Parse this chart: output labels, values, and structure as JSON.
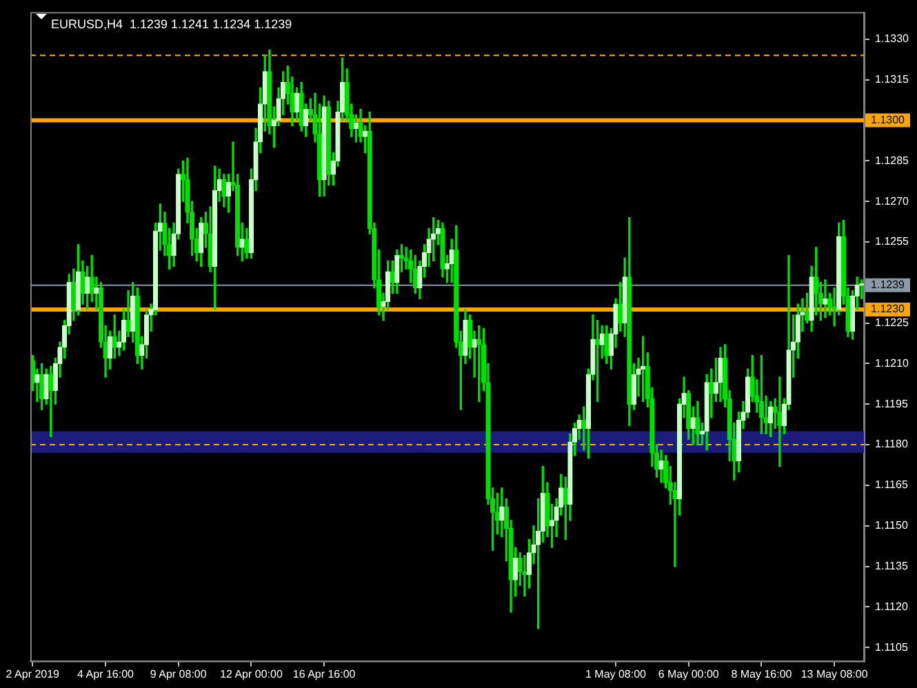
{
  "chart_data": {
    "type": "candlestick",
    "title": "EURUSD,H4  1.1239 1.1241 1.1234 1.1239",
    "color": "#00e000",
    "categories": [
      "2 Apr 2019",
      null,
      null,
      null,
      null,
      null,
      null,
      null,
      null,
      null,
      null,
      null,
      null,
      null,
      null,
      null,
      "4 Apr 16:00",
      null,
      null,
      null,
      null,
      null,
      null,
      null,
      null,
      null,
      null,
      null,
      null,
      null,
      null,
      null,
      "9 Apr 08:00",
      null,
      null,
      null,
      null,
      null,
      null,
      null,
      null,
      null,
      null,
      null,
      null,
      null,
      null,
      null,
      "12 Apr 00:00",
      null,
      null,
      null,
      null,
      null,
      null,
      null,
      null,
      null,
      null,
      null,
      null,
      null,
      null,
      null,
      "16 Apr 16:00",
      null,
      null,
      null,
      null,
      null,
      null,
      null,
      null,
      null,
      null,
      null,
      null,
      null,
      null,
      null,
      null,
      null,
      null,
      null,
      null,
      null,
      null,
      null,
      null,
      null,
      null,
      null,
      null,
      null,
      null,
      null,
      null,
      null,
      null,
      null,
      null,
      null,
      null,
      null,
      null,
      null,
      null,
      null,
      null,
      null,
      null,
      null,
      null,
      null,
      null,
      null,
      null,
      null,
      null,
      null,
      null,
      null,
      null,
      null,
      null,
      null,
      null,
      null,
      "1 May 08:00",
      null,
      null,
      null,
      null,
      null,
      null,
      null,
      null,
      null,
      null,
      null,
      null,
      null,
      null,
      null,
      "6 May 00:00",
      null,
      null,
      null,
      null,
      null,
      null,
      null,
      null,
      null,
      null,
      null,
      null,
      null,
      null,
      null,
      "8 May 16:00",
      null,
      null,
      null,
      null,
      null,
      null,
      null,
      null,
      null,
      null,
      null,
      null,
      null,
      null,
      null,
      "13 May 08:00",
      null,
      null,
      null,
      null,
      null,
      null
    ],
    "ohlc": [
      [
        1.1211,
        1.1213,
        1.12,
        1.1203
      ],
      [
        1.1203,
        1.1208,
        1.1196,
        1.1206
      ],
      [
        1.1206,
        1.121,
        1.1193,
        1.1197
      ],
      [
        1.1197,
        1.1208,
        1.1195,
        1.1206
      ],
      [
        1.1206,
        1.1209,
        1.1183,
        1.12
      ],
      [
        1.12,
        1.1212,
        1.1195,
        1.121
      ],
      [
        1.121,
        1.1218,
        1.1205,
        1.1216
      ],
      [
        1.1216,
        1.1226,
        1.1212,
        1.1224
      ],
      [
        1.1224,
        1.1243,
        1.1221,
        1.124
      ],
      [
        1.124,
        1.1245,
        1.1226,
        1.123
      ],
      [
        1.123,
        1.1254,
        1.1228,
        1.1244
      ],
      [
        1.1244,
        1.1248,
        1.1232,
        1.1236
      ],
      [
        1.1236,
        1.1246,
        1.123,
        1.1242
      ],
      [
        1.1242,
        1.125,
        1.1233,
        1.1236
      ],
      [
        1.1236,
        1.1242,
        1.123,
        1.1238
      ],
      [
        1.1238,
        1.124,
        1.1216,
        1.1218
      ],
      [
        1.1218,
        1.1224,
        1.1205,
        1.1212
      ],
      [
        1.1212,
        1.1222,
        1.1208,
        1.122
      ],
      [
        1.122,
        1.1228,
        1.1212,
        1.1216
      ],
      [
        1.1216,
        1.1222,
        1.1213,
        1.1218
      ],
      [
        1.1218,
        1.123,
        1.1215,
        1.1226
      ],
      [
        1.1226,
        1.1237,
        1.122,
        1.1222
      ],
      [
        1.1222,
        1.124,
        1.1218,
        1.1235
      ],
      [
        1.1235,
        1.1238,
        1.121,
        1.1213
      ],
      [
        1.1213,
        1.122,
        1.1208,
        1.1217
      ],
      [
        1.1217,
        1.123,
        1.1212,
        1.1228
      ],
      [
        1.1228,
        1.1232,
        1.1222,
        1.123
      ],
      [
        1.123,
        1.1262,
        1.1228,
        1.1259
      ],
      [
        1.1259,
        1.1269,
        1.1252,
        1.1262
      ],
      [
        1.1262,
        1.1266,
        1.125,
        1.1254
      ],
      [
        1.1254,
        1.126,
        1.1245,
        1.125
      ],
      [
        1.125,
        1.1262,
        1.1246,
        1.1258
      ],
      [
        1.1258,
        1.1282,
        1.1256,
        1.128
      ],
      [
        1.128,
        1.1285,
        1.127,
        1.1278
      ],
      [
        1.1278,
        1.1286,
        1.1262,
        1.1266
      ],
      [
        1.1266,
        1.127,
        1.125,
        1.1256
      ],
      [
        1.1256,
        1.126,
        1.1248,
        1.1251
      ],
      [
        1.1251,
        1.1264,
        1.1246,
        1.1262
      ],
      [
        1.1262,
        1.1266,
        1.1253,
        1.1258
      ],
      [
        1.1258,
        1.1268,
        1.1244,
        1.1246
      ],
      [
        1.1246,
        1.1283,
        1.123,
        1.1274
      ],
      [
        1.1274,
        1.1282,
        1.127,
        1.1278
      ],
      [
        1.1278,
        1.128,
        1.1268,
        1.1272
      ],
      [
        1.1272,
        1.128,
        1.1266,
        1.1277
      ],
      [
        1.1277,
        1.1292,
        1.1274,
        1.1276
      ],
      [
        1.1276,
        1.128,
        1.125,
        1.1253
      ],
      [
        1.1253,
        1.1262,
        1.1248,
        1.1256
      ],
      [
        1.1256,
        1.126,
        1.1249,
        1.1251
      ],
      [
        1.1251,
        1.1282,
        1.1249,
        1.1278
      ],
      [
        1.1278,
        1.1297,
        1.1274,
        1.1292
      ],
      [
        1.1292,
        1.1312,
        1.1288,
        1.1306
      ],
      [
        1.1306,
        1.1324,
        1.1296,
        1.1318
      ],
      [
        1.1318,
        1.1326,
        1.1295,
        1.1298
      ],
      [
        1.1298,
        1.1305,
        1.129,
        1.13
      ],
      [
        1.13,
        1.1312,
        1.1298,
        1.1308
      ],
      [
        1.1308,
        1.1318,
        1.1302,
        1.1314
      ],
      [
        1.1314,
        1.132,
        1.1306,
        1.131
      ],
      [
        1.131,
        1.1316,
        1.1298,
        1.1303
      ],
      [
        1.1303,
        1.1312,
        1.13,
        1.131
      ],
      [
        1.131,
        1.1314,
        1.1296,
        1.1298
      ],
      [
        1.1298,
        1.1306,
        1.1294,
        1.1304
      ],
      [
        1.1304,
        1.1308,
        1.13,
        1.1302
      ],
      [
        1.1302,
        1.131,
        1.1292,
        1.1295
      ],
      [
        1.1295,
        1.1306,
        1.1272,
        1.1278
      ],
      [
        1.1278,
        1.1309,
        1.1272,
        1.1305
      ],
      [
        1.1305,
        1.1307,
        1.1276,
        1.128
      ],
      [
        1.128,
        1.1288,
        1.1276,
        1.1285
      ],
      [
        1.1285,
        1.1307,
        1.1283,
        1.1303
      ],
      [
        1.1303,
        1.1323,
        1.13,
        1.1314
      ],
      [
        1.1314,
        1.1319,
        1.13,
        1.1302
      ],
      [
        1.1302,
        1.1306,
        1.1294,
        1.1297
      ],
      [
        1.1297,
        1.1302,
        1.1292,
        1.1299
      ],
      [
        1.1299,
        1.1304,
        1.1292,
        1.1294
      ],
      [
        1.1294,
        1.1298,
        1.1288,
        1.1296
      ],
      [
        1.1296,
        1.1303,
        1.1258,
        1.126
      ],
      [
        1.126,
        1.1262,
        1.1238,
        1.1241
      ],
      [
        1.1241,
        1.1252,
        1.1228,
        1.1231
      ],
      [
        1.1231,
        1.1236,
        1.1226,
        1.1233
      ],
      [
        1.1233,
        1.1248,
        1.123,
        1.1244
      ],
      [
        1.1244,
        1.1248,
        1.1236,
        1.124
      ],
      [
        1.124,
        1.1252,
        1.1236,
        1.125
      ],
      [
        1.125,
        1.1254,
        1.1244,
        1.1249
      ],
      [
        1.1249,
        1.1253,
        1.1245,
        1.1248
      ],
      [
        1.1248,
        1.1252,
        1.124,
        1.1245
      ],
      [
        1.1245,
        1.125,
        1.1236,
        1.1238
      ],
      [
        1.1238,
        1.1248,
        1.1234,
        1.1246
      ],
      [
        1.1246,
        1.1254,
        1.1242,
        1.1251
      ],
      [
        1.1251,
        1.126,
        1.1246,
        1.1256
      ],
      [
        1.1256,
        1.1264,
        1.1248,
        1.1258
      ],
      [
        1.1258,
        1.1263,
        1.1254,
        1.126
      ],
      [
        1.126,
        1.1262,
        1.1242,
        1.1245
      ],
      [
        1.1245,
        1.125,
        1.124,
        1.1247
      ],
      [
        1.1247,
        1.1256,
        1.124,
        1.1252
      ],
      [
        1.1252,
        1.1261,
        1.1216,
        1.1218
      ],
      [
        1.1218,
        1.1222,
        1.1193,
        1.1213
      ],
      [
        1.1213,
        1.123,
        1.121,
        1.1226
      ],
      [
        1.1226,
        1.1228,
        1.1212,
        1.1216
      ],
      [
        1.1216,
        1.1222,
        1.1205,
        1.1219
      ],
      [
        1.1219,
        1.1224,
        1.1196,
        1.1217
      ],
      [
        1.1217,
        1.1223,
        1.12,
        1.1203
      ],
      [
        1.1203,
        1.121,
        1.1158,
        1.116
      ],
      [
        1.116,
        1.1164,
        1.1141,
        1.1155
      ],
      [
        1.1155,
        1.1162,
        1.1147,
        1.1152
      ],
      [
        1.1152,
        1.1164,
        1.1146,
        1.1157
      ],
      [
        1.1157,
        1.116,
        1.1137,
        1.1149
      ],
      [
        1.1149,
        1.1152,
        1.1118,
        1.113
      ],
      [
        1.113,
        1.1142,
        1.1124,
        1.1138
      ],
      [
        1.1138,
        1.114,
        1.1128,
        1.1133
      ],
      [
        1.1133,
        1.1139,
        1.1124,
        1.1132
      ],
      [
        1.1132,
        1.1145,
        1.1127,
        1.114
      ],
      [
        1.114,
        1.115,
        1.1136,
        1.1143
      ],
      [
        1.1143,
        1.116,
        1.1112,
        1.1148
      ],
      [
        1.1148,
        1.1172,
        1.1144,
        1.1162
      ],
      [
        1.1162,
        1.1166,
        1.1146,
        1.115
      ],
      [
        1.115,
        1.1158,
        1.1142,
        1.1152
      ],
      [
        1.1152,
        1.116,
        1.1146,
        1.1157
      ],
      [
        1.1157,
        1.1169,
        1.1154,
        1.1164
      ],
      [
        1.1164,
        1.1168,
        1.1145,
        1.1158
      ],
      [
        1.1158,
        1.1184,
        1.1152,
        1.1181
      ],
      [
        1.1181,
        1.1188,
        1.1176,
        1.1186
      ],
      [
        1.1186,
        1.1191,
        1.1182,
        1.1189
      ],
      [
        1.1189,
        1.1194,
        1.1178,
        1.1186
      ],
      [
        1.1186,
        1.1208,
        1.1175,
        1.1206
      ],
      [
        1.1206,
        1.1228,
        1.1204,
        1.1219
      ],
      [
        1.1219,
        1.1226,
        1.1196,
        1.1217
      ],
      [
        1.1217,
        1.1224,
        1.1212,
        1.1221
      ],
      [
        1.1221,
        1.1224,
        1.121,
        1.1213
      ],
      [
        1.1213,
        1.1223,
        1.1208,
        1.1221
      ],
      [
        1.1221,
        1.1234,
        1.1216,
        1.1232
      ],
      [
        1.1232,
        1.124,
        1.1222,
        1.1225
      ],
      [
        1.1225,
        1.1249,
        1.122,
        1.1242
      ],
      [
        1.1242,
        1.1264,
        1.1187,
        1.1195
      ],
      [
        1.1195,
        1.121,
        1.1193,
        1.1206
      ],
      [
        1.1206,
        1.1212,
        1.1198,
        1.1208
      ],
      [
        1.1208,
        1.122,
        1.1196,
        1.1209
      ],
      [
        1.1209,
        1.1214,
        1.1194,
        1.1197
      ],
      [
        1.1197,
        1.1201,
        1.1172,
        1.1177
      ],
      [
        1.1177,
        1.118,
        1.1168,
        1.1171
      ],
      [
        1.1171,
        1.1178,
        1.1166,
        1.1174
      ],
      [
        1.1174,
        1.1176,
        1.1164,
        1.1166
      ],
      [
        1.1166,
        1.1172,
        1.1158,
        1.1163
      ],
      [
        1.1163,
        1.1166,
        1.1135,
        1.116
      ],
      [
        1.116,
        1.1197,
        1.1154,
        1.1195
      ],
      [
        1.1195,
        1.1205,
        1.119,
        1.1199
      ],
      [
        1.1199,
        1.12,
        1.1182,
        1.1186
      ],
      [
        1.1186,
        1.1194,
        1.118,
        1.119
      ],
      [
        1.119,
        1.1196,
        1.118,
        1.1184
      ],
      [
        1.1184,
        1.1188,
        1.118,
        1.1185
      ],
      [
        1.1185,
        1.1206,
        1.1178,
        1.1203
      ],
      [
        1.1203,
        1.1208,
        1.119,
        1.1199
      ],
      [
        1.1199,
        1.1212,
        1.1196,
        1.1203
      ],
      [
        1.1203,
        1.1216,
        1.1196,
        1.1212
      ],
      [
        1.1212,
        1.1217,
        1.1194,
        1.1197
      ],
      [
        1.1197,
        1.12,
        1.1174,
        1.1182
      ],
      [
        1.1182,
        1.1188,
        1.1167,
        1.1174
      ],
      [
        1.1174,
        1.1192,
        1.117,
        1.1189
      ],
      [
        1.1189,
        1.1196,
        1.1186,
        1.1192
      ],
      [
        1.1192,
        1.1208,
        1.119,
        1.1205
      ],
      [
        1.1205,
        1.1213,
        1.1196,
        1.1198
      ],
      [
        1.1198,
        1.1204,
        1.1192,
        1.1196
      ],
      [
        1.1196,
        1.1213,
        1.1184,
        1.119
      ],
      [
        1.119,
        1.1198,
        1.1184,
        1.1188
      ],
      [
        1.1188,
        1.1196,
        1.1183,
        1.1194
      ],
      [
        1.1194,
        1.1197,
        1.1186,
        1.1192
      ],
      [
        1.1192,
        1.1205,
        1.1172,
        1.1187
      ],
      [
        1.1187,
        1.1197,
        1.1184,
        1.1195
      ],
      [
        1.1195,
        1.125,
        1.1193,
        1.1215
      ],
      [
        1.1215,
        1.1228,
        1.1205,
        1.1218
      ],
      [
        1.1218,
        1.1232,
        1.1212,
        1.1228
      ],
      [
        1.1228,
        1.1234,
        1.1222,
        1.1229
      ],
      [
        1.1229,
        1.1236,
        1.1225,
        1.1226
      ],
      [
        1.1226,
        1.1246,
        1.1222,
        1.1242
      ],
      [
        1.1242,
        1.1253,
        1.1228,
        1.1236
      ],
      [
        1.1236,
        1.124,
        1.1226,
        1.1232
      ],
      [
        1.1232,
        1.1241,
        1.1227,
        1.1234
      ],
      [
        1.1234,
        1.1236,
        1.1228,
        1.1231
      ],
      [
        1.1231,
        1.1238,
        1.1224,
        1.123
      ],
      [
        1.123,
        1.1262,
        1.1228,
        1.1257
      ],
      [
        1.1257,
        1.1263,
        1.1232,
        1.1235
      ],
      [
        1.1235,
        1.1238,
        1.122,
        1.1222
      ],
      [
        1.1222,
        1.1237,
        1.1219,
        1.1235
      ],
      [
        1.1235,
        1.1242,
        1.123,
        1.1239
      ],
      [
        1.1239,
        1.1241,
        1.1234,
        1.1239
      ]
    ],
    "colors": [
      "#00e000",
      "#c8ffc8",
      "#00e000",
      "#c8ffc8",
      "#00e000",
      "#c8ffc8",
      "#c8ffc8",
      "#c8ffc8",
      "#c8ffc8",
      "#00e000",
      "#c8ffc8",
      "#00e000",
      "#c8ffc8",
      "#00e000",
      "#c8ffc8",
      "#00e000",
      "#00e000",
      "#c8ffc8",
      "#00e000",
      "#c8ffc8",
      "#c8ffc8",
      "#00e000",
      "#c8ffc8",
      "#00e000",
      "#c8ffc8",
      "#c8ffc8",
      "#c8ffc8",
      "#c8ffc8",
      "#c8ffc8",
      "#00e000",
      "#00e000",
      "#c8ffc8",
      "#c8ffc8",
      "#00e000",
      "#00e000",
      "#00e000",
      "#00e000",
      "#c8ffc8",
      "#00e000",
      "#00e000",
      "#c8ffc8",
      "#c8ffc8",
      "#00e000",
      "#c8ffc8",
      "#00e000",
      "#00e000",
      "#c8ffc8",
      "#00e000",
      "#c8ffc8",
      "#c8ffc8",
      "#c8ffc8",
      "#c8ffc8",
      "#00e000",
      "#c8ffc8",
      "#c8ffc8",
      "#c8ffc8",
      "#00e000",
      "#00e000",
      "#c8ffc8",
      "#00e000",
      "#c8ffc8",
      "#00e000",
      "#00e000",
      "#00e000",
      "#c8ffc8",
      "#00e000",
      "#c8ffc8",
      "#c8ffc8",
      "#c8ffc8",
      "#00e000",
      "#00e000",
      "#c8ffc8",
      "#00e000",
      "#c8ffc8",
      "#00e000",
      "#00e000",
      "#00e000",
      "#c8ffc8",
      "#c8ffc8",
      "#00e000",
      "#c8ffc8",
      "#00e000",
      "#00e000",
      "#00e000",
      "#00e000",
      "#c8ffc8",
      "#c8ffc8",
      "#c8ffc8",
      "#c8ffc8",
      "#c8ffc8",
      "#00e000",
      "#c8ffc8",
      "#c8ffc8",
      "#00e000",
      "#00e000",
      "#c8ffc8",
      "#00e000",
      "#c8ffc8",
      "#00e000",
      "#00e000",
      "#00e000",
      "#00e000",
      "#00e000",
      "#c8ffc8",
      "#00e000",
      "#00e000",
      "#c8ffc8",
      "#00e000",
      "#00e000",
      "#c8ffc8",
      "#c8ffc8",
      "#c8ffc8",
      "#c8ffc8",
      "#00e000",
      "#c8ffc8",
      "#c8ffc8",
      "#c8ffc8",
      "#00e000",
      "#c8ffc8",
      "#c8ffc8",
      "#c8ffc8",
      "#00e000",
      "#c8ffc8",
      "#c8ffc8",
      "#00e000",
      "#c8ffc8",
      "#00e000",
      "#c8ffc8",
      "#c8ffc8",
      "#00e000",
      "#c8ffc8",
      "#00e000",
      "#c8ffc8",
      "#c8ffc8",
      "#c8ffc8",
      "#00e000",
      "#00e000",
      "#00e000",
      "#c8ffc8",
      "#00e000",
      "#00e000",
      "#00e000",
      "#c8ffc8",
      "#c8ffc8",
      "#00e000",
      "#c8ffc8",
      "#00e000",
      "#c8ffc8",
      "#c8ffc8",
      "#00e000",
      "#c8ffc8",
      "#c8ffc8",
      "#00e000",
      "#00e000",
      "#00e000",
      "#c8ffc8",
      "#c8ffc8",
      "#c8ffc8",
      "#00e000",
      "#00e000",
      "#00e000",
      "#00e000",
      "#c8ffc8",
      "#00e000",
      "#00e000",
      "#c8ffc8",
      "#c8ffc8",
      "#c8ffc8",
      "#c8ffc8",
      "#c8ffc8",
      "#00e000",
      "#c8ffc8",
      "#00e000",
      "#00e000",
      "#c8ffc8",
      "#00e000",
      "#00e000",
      "#c8ffc8",
      "#00e000",
      "#00e000",
      "#c8ffc8",
      "#c8ffc8",
      "#c8ffc8"
    ],
    "ylim": [
      1.11,
      1.134
    ],
    "yticks": [
      {
        "value": 1.133,
        "label": "1.1330"
      },
      {
        "value": 1.1315,
        "label": "1.1315"
      },
      {
        "value": 1.1285,
        "label": "1.1285"
      },
      {
        "value": 1.127,
        "label": "1.1270"
      },
      {
        "value": 1.1255,
        "label": "1.1255"
      },
      {
        "value": 1.1225,
        "label": "1.1225"
      },
      {
        "value": 1.121,
        "label": "1.1210"
      },
      {
        "value": 1.1195,
        "label": "1.1195"
      },
      {
        "value": 1.118,
        "label": "1.1180"
      },
      {
        "value": 1.1165,
        "label": "1.1165"
      },
      {
        "value": 1.115,
        "label": "1.1150"
      },
      {
        "value": 1.1135,
        "label": "1.1135"
      },
      {
        "value": 1.112,
        "label": "1.1120"
      },
      {
        "value": 1.1105,
        "label": "1.1105"
      }
    ],
    "ref_lines": [
      {
        "axis": "y",
        "value": 1.1324,
        "color": "#ffb000",
        "line_style": "dashed"
      },
      {
        "axis": "y",
        "value": 1.13,
        "label": "1.1300",
        "color": "#ffa500"
      },
      {
        "axis": "y",
        "value": 1.1239,
        "label": "1.1239",
        "color": "#8a9aa8"
      },
      {
        "axis": "y",
        "value": 1.123,
        "label": "1.1230",
        "color": "#ffa500"
      },
      {
        "axis": "y",
        "value": 1.118,
        "color": "#ffb000",
        "line_style": "dashed"
      }
    ],
    "bands": [
      {
        "axis": "y",
        "from": 1.1177,
        "to": 1.1185,
        "color": "#1c1c7a"
      }
    ]
  }
}
